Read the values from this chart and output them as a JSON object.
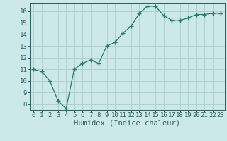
{
  "x": [
    0,
    1,
    2,
    3,
    4,
    5,
    6,
    7,
    8,
    9,
    10,
    11,
    12,
    13,
    14,
    15,
    16,
    17,
    18,
    19,
    20,
    21,
    22,
    23
  ],
  "y": [
    11.0,
    10.8,
    10.0,
    8.3,
    7.6,
    11.0,
    11.5,
    11.8,
    11.5,
    13.0,
    13.3,
    14.1,
    14.7,
    15.8,
    16.4,
    16.4,
    15.6,
    15.2,
    15.2,
    15.4,
    15.7,
    15.7,
    15.8,
    15.8
  ],
  "line_color": "#2a7a6e",
  "marker": "+",
  "marker_size": 4,
  "bg_color": "#cce8e8",
  "grid_color": "#b0cfcf",
  "xlabel": "Humidex (Indice chaleur)",
  "xlim": [
    -0.5,
    23.5
  ],
  "ylim": [
    7.5,
    16.7
  ],
  "yticks": [
    8,
    9,
    10,
    11,
    12,
    13,
    14,
    15,
    16
  ],
  "xticks": [
    0,
    1,
    2,
    3,
    4,
    5,
    6,
    7,
    8,
    9,
    10,
    11,
    12,
    13,
    14,
    15,
    16,
    17,
    18,
    19,
    20,
    21,
    22,
    23
  ],
  "tick_color": "#2a6060",
  "label_fontsize": 6.5,
  "xlabel_fontsize": 7.5
}
